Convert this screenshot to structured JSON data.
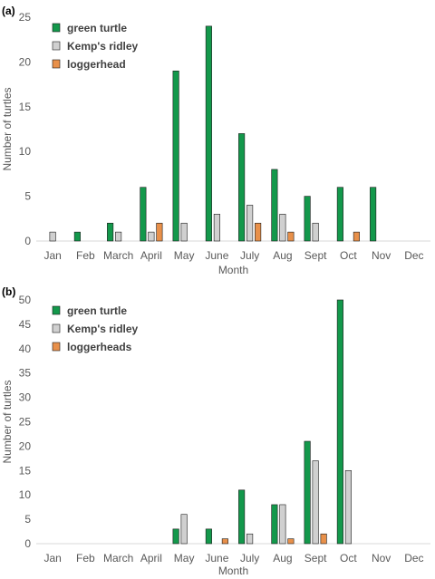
{
  "chart_data": [
    {
      "panel_label": "(a)",
      "type": "bar",
      "ylabel": "Number of turtles",
      "xlabel": "Month",
      "ylim": [
        0,
        25
      ],
      "yticks": [
        0,
        5,
        10,
        15,
        20,
        25
      ],
      "grid": false,
      "legend_position": "top-left",
      "categories": [
        "Jan",
        "Feb",
        "March",
        "April",
        "May",
        "June",
        "July",
        "Aug",
        "Sept",
        "Oct",
        "Nov",
        "Dec"
      ],
      "series": [
        {
          "name": "green turtle",
          "color": "#13984b",
          "values": [
            0,
            1,
            2,
            6,
            19,
            24,
            12,
            8,
            5,
            6,
            6,
            0
          ]
        },
        {
          "name": "Kemp's ridley",
          "color": "#d0d0d0",
          "values": [
            1,
            0,
            1,
            1,
            2,
            3,
            4,
            3,
            2,
            0,
            0,
            0
          ]
        },
        {
          "name": "loggerhead",
          "color": "#e8904a",
          "values": [
            0,
            0,
            0,
            2,
            0,
            0,
            2,
            1,
            0,
            1,
            0,
            0
          ]
        }
      ]
    },
    {
      "panel_label": "(b)",
      "type": "bar",
      "ylabel": "Number of turtles",
      "xlabel": "Month",
      "ylim": [
        0,
        50
      ],
      "yticks": [
        0,
        5,
        10,
        15,
        20,
        25,
        30,
        35,
        40,
        45,
        50
      ],
      "grid": false,
      "legend_position": "top-left",
      "categories": [
        "Jan",
        "Feb",
        "March",
        "April",
        "May",
        "June",
        "July",
        "Aug",
        "Sept",
        "Oct",
        "Nov",
        "Dec"
      ],
      "series": [
        {
          "name": "green turtle",
          "color": "#13984b",
          "values": [
            0,
            0,
            0,
            0,
            3,
            3,
            11,
            8,
            21,
            50,
            0,
            0
          ]
        },
        {
          "name": "Kemp's ridley",
          "color": "#d0d0d0",
          "values": [
            0,
            0,
            0,
            0,
            6,
            0,
            2,
            8,
            17,
            15,
            0,
            0
          ]
        },
        {
          "name": "loggerheads",
          "color": "#e8904a",
          "values": [
            0,
            0,
            0,
            0,
            0,
            1,
            0,
            1,
            2,
            0,
            0,
            0
          ]
        }
      ]
    }
  ]
}
